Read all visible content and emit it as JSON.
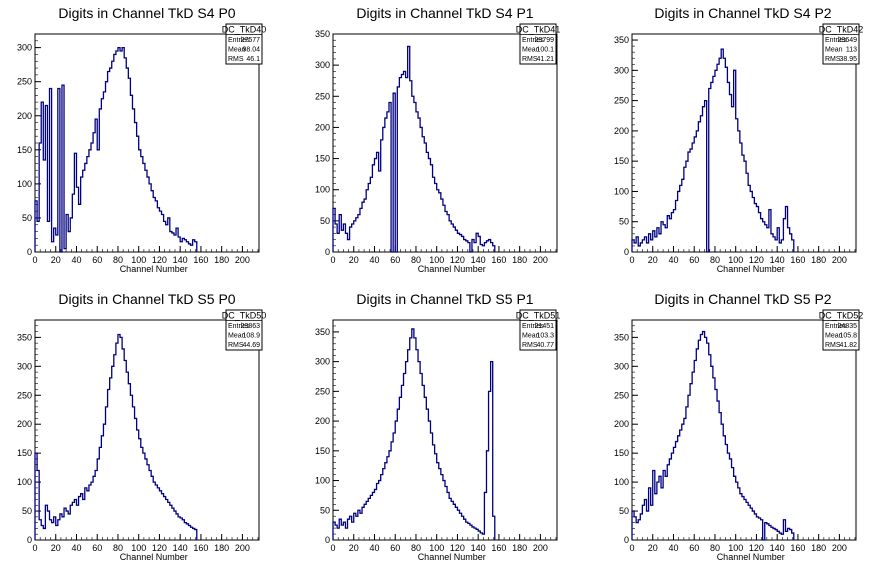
{
  "chart_data": [
    {
      "type": "histogram",
      "title": "Digits in Channel TkD S4 P0",
      "xlabel": "Channel Number",
      "xlim": [
        0,
        216
      ],
      "ylim": [
        0,
        320
      ],
      "xticks": [
        0,
        20,
        40,
        60,
        80,
        100,
        120,
        140,
        160,
        180,
        200
      ],
      "yticks": [
        0,
        50,
        100,
        150,
        200,
        250,
        300
      ],
      "stats": {
        "name": "DC_TkD40",
        "rows": [
          {
            "label": "Entries",
            "value": "27577"
          },
          {
            "label": "Mean",
            "value": "98.04"
          },
          {
            "label": "RMS",
            "value": "46.1"
          }
        ]
      },
      "bin_width": 2,
      "values": [
        75,
        45,
        160,
        220,
        135,
        215,
        45,
        240,
        15,
        35,
        25,
        240,
        0,
        245,
        5,
        55,
        30,
        50,
        85,
        145,
        95,
        70,
        110,
        120,
        130,
        140,
        150,
        160,
        175,
        195,
        150,
        210,
        225,
        235,
        250,
        265,
        270,
        280,
        290,
        295,
        300,
        295,
        300,
        285,
        270,
        255,
        230,
        210,
        190,
        170,
        150,
        140,
        130,
        120,
        110,
        100,
        90,
        80,
        75,
        65,
        60,
        55,
        45,
        40,
        50,
        30,
        28,
        25,
        35,
        22,
        15,
        20,
        18,
        15,
        12,
        10,
        18,
        15
      ]
    },
    {
      "type": "histogram",
      "title": "Digits in Channel TkD S4 P1",
      "xlabel": "Channel Number",
      "xlim": [
        0,
        216
      ],
      "ylim": [
        0,
        350
      ],
      "xticks": [
        0,
        20,
        40,
        60,
        80,
        100,
        120,
        140,
        160,
        180,
        200
      ],
      "yticks": [
        0,
        50,
        100,
        150,
        200,
        250,
        300,
        350
      ],
      "stats": {
        "name": "DC_TkD41",
        "rows": [
          {
            "label": "Entries",
            "value": "23799"
          },
          {
            "label": "Mean",
            "value": "100.1"
          },
          {
            "label": "RMS",
            "value": "41.21"
          }
        ]
      },
      "bin_width": 2,
      "values": [
        70,
        45,
        30,
        60,
        35,
        45,
        30,
        20,
        40,
        45,
        50,
        55,
        60,
        70,
        80,
        85,
        100,
        110,
        120,
        140,
        150,
        160,
        130,
        180,
        200,
        215,
        225,
        240,
        0,
        255,
        0,
        265,
        280,
        285,
        290,
        280,
        330,
        275,
        250,
        240,
        225,
        215,
        200,
        185,
        175,
        160,
        150,
        140,
        120,
        110,
        100,
        95,
        85,
        75,
        65,
        60,
        50,
        45,
        40,
        35,
        30,
        28,
        25,
        20,
        18,
        15,
        0,
        20,
        15,
        30,
        25,
        12,
        10,
        15,
        18,
        20,
        15,
        10
      ]
    },
    {
      "type": "histogram",
      "title": "Digits in Channel TkD S4 P2",
      "xlabel": "Channel Number",
      "xlim": [
        0,
        216
      ],
      "ylim": [
        0,
        360
      ],
      "xticks": [
        0,
        20,
        40,
        60,
        80,
        100,
        120,
        140,
        160,
        180,
        200
      ],
      "yticks": [
        0,
        50,
        100,
        150,
        200,
        250,
        300,
        350
      ],
      "stats": {
        "name": "DC_TkD42",
        "rows": [
          {
            "label": "Entries",
            "value": "23649"
          },
          {
            "label": "Mean",
            "value": "113"
          },
          {
            "label": "RMS",
            "value": "38.95"
          }
        ]
      },
      "bin_width": 2,
      "values": [
        20,
        15,
        25,
        10,
        15,
        20,
        25,
        15,
        30,
        20,
        35,
        25,
        40,
        30,
        50,
        45,
        40,
        60,
        55,
        65,
        70,
        85,
        100,
        110,
        120,
        140,
        150,
        165,
        170,
        180,
        190,
        200,
        215,
        225,
        240,
        250,
        0,
        270,
        280,
        290,
        300,
        310,
        320,
        335,
        320,
        305,
        280,
        260,
        240,
        300,
        220,
        200,
        180,
        160,
        150,
        130,
        110,
        100,
        90,
        80,
        75,
        65,
        55,
        50,
        45,
        40,
        70,
        30,
        25,
        20,
        40,
        15,
        20,
        55,
        75,
        40,
        30,
        20
      ]
    },
    {
      "type": "histogram",
      "title": "Digits in Channel TkD S5 P0",
      "xlabel": "Channel Number",
      "xlim": [
        0,
        216
      ],
      "ylim": [
        0,
        380
      ],
      "xticks": [
        0,
        20,
        40,
        60,
        80,
        100,
        120,
        140,
        160,
        180,
        200
      ],
      "yticks": [
        0,
        50,
        100,
        150,
        200,
        250,
        300,
        350
      ],
      "stats": {
        "name": "DC_TkD50",
        "rows": [
          {
            "label": "Entries",
            "value": "23863"
          },
          {
            "label": "Mean",
            "value": "108.9"
          },
          {
            "label": "RMS",
            "value": "44.69"
          }
        ]
      },
      "bin_width": 2,
      "values": [
        150,
        120,
        35,
        25,
        20,
        60,
        50,
        35,
        30,
        40,
        25,
        35,
        45,
        40,
        55,
        50,
        45,
        60,
        65,
        70,
        60,
        75,
        80,
        70,
        90,
        85,
        95,
        100,
        110,
        120,
        140,
        160,
        180,
        200,
        230,
        260,
        280,
        300,
        320,
        340,
        355,
        350,
        330,
        310,
        290,
        270,
        250,
        230,
        210,
        190,
        175,
        160,
        150,
        140,
        130,
        120,
        110,
        100,
        95,
        90,
        85,
        80,
        75,
        70,
        65,
        60,
        55,
        50,
        45,
        40,
        38,
        35,
        30,
        28,
        25,
        22,
        20,
        18
      ]
    },
    {
      "type": "histogram",
      "title": "Digits in Channel TkD S5 P1",
      "xlabel": "Channel Number",
      "xlim": [
        0,
        216
      ],
      "ylim": [
        0,
        370
      ],
      "xticks": [
        0,
        20,
        40,
        60,
        80,
        100,
        120,
        140,
        160,
        180,
        200
      ],
      "yticks": [
        0,
        50,
        100,
        150,
        200,
        250,
        300,
        350
      ],
      "stats": {
        "name": "DC_TkD51",
        "rows": [
          {
            "label": "Entries",
            "value": "21451"
          },
          {
            "label": "Mean",
            "value": "103.3"
          },
          {
            "label": "RMS",
            "value": "40.77"
          }
        ]
      },
      "bin_width": 2,
      "values": [
        30,
        25,
        20,
        35,
        25,
        30,
        20,
        35,
        40,
        30,
        45,
        40,
        50,
        45,
        55,
        60,
        65,
        70,
        75,
        80,
        85,
        95,
        100,
        110,
        120,
        130,
        140,
        150,
        165,
        180,
        200,
        220,
        240,
        260,
        280,
        300,
        320,
        340,
        355,
        340,
        320,
        300,
        280,
        260,
        240,
        220,
        200,
        180,
        160,
        145,
        130,
        120,
        110,
        100,
        90,
        80,
        70,
        65,
        60,
        55,
        50,
        45,
        40,
        35,
        30,
        28,
        25,
        22,
        20,
        18,
        15,
        12,
        10,
        80,
        150,
        250,
        300,
        40
      ]
    },
    {
      "type": "histogram",
      "title": "Digits in Channel TkD S5 P2",
      "xlabel": "Channel Number",
      "xlim": [
        0,
        216
      ],
      "ylim": [
        0,
        380
      ],
      "xticks": [
        0,
        20,
        40,
        60,
        80,
        100,
        120,
        140,
        160,
        180,
        200
      ],
      "yticks": [
        0,
        50,
        100,
        150,
        200,
        250,
        300,
        350
      ],
      "stats": {
        "name": "DC_TkD52",
        "rows": [
          {
            "label": "Entries",
            "value": "24835"
          },
          {
            "label": "Mean",
            "value": "105.8"
          },
          {
            "label": "RMS",
            "value": "41.82"
          }
        ]
      },
      "bin_width": 2,
      "values": [
        50,
        40,
        30,
        35,
        45,
        60,
        70,
        50,
        90,
        60,
        120,
        80,
        100,
        110,
        90,
        120,
        110,
        130,
        140,
        150,
        160,
        170,
        180,
        190,
        200,
        210,
        230,
        250,
        270,
        290,
        310,
        330,
        345,
        355,
        360,
        350,
        340,
        320,
        300,
        280,
        260,
        240,
        220,
        200,
        180,
        165,
        150,
        140,
        125,
        110,
        100,
        90,
        80,
        75,
        70,
        65,
        60,
        55,
        50,
        45,
        40,
        38,
        35,
        0,
        30,
        28,
        25,
        22,
        20,
        18,
        15,
        12,
        10,
        35,
        15,
        20,
        18,
        12
      ]
    }
  ]
}
